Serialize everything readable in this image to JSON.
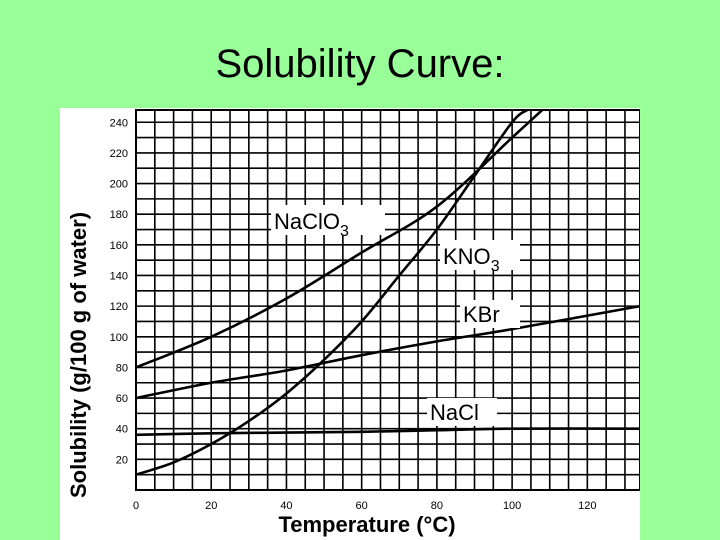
{
  "slide": {
    "title": "Solubility Curve:"
  },
  "chart_data": {
    "type": "line",
    "xlabel": "Temperature (°C)",
    "ylabel": "Solubility (g/100 g of water)",
    "xlim": [
      0,
      134
    ],
    "ylim": [
      0,
      248
    ],
    "grid": true,
    "xticks": [
      0,
      20,
      40,
      60,
      80,
      100,
      120
    ],
    "yticks": [
      20,
      40,
      60,
      80,
      100,
      120,
      140,
      160,
      180,
      200,
      220,
      240
    ],
    "series": [
      {
        "name": "NaClO3",
        "label_main": "NaClO",
        "label_sub": "3",
        "x": [
          0,
          20,
          40,
          60,
          80,
          100,
          108
        ],
        "y": [
          80,
          100,
          125,
          155,
          185,
          230,
          248
        ]
      },
      {
        "name": "KNO3",
        "label_main": "KNO",
        "label_sub": "3",
        "x": [
          0,
          10,
          20,
          30,
          40,
          50,
          60,
          70,
          80,
          90,
          100,
          104
        ],
        "y": [
          10,
          18,
          30,
          45,
          63,
          85,
          110,
          140,
          170,
          205,
          240,
          248
        ]
      },
      {
        "name": "KBr",
        "label_main": "KBr",
        "label_sub": "",
        "x": [
          0,
          20,
          40,
          60,
          80,
          100,
          134
        ],
        "y": [
          60,
          70,
          78,
          88,
          97,
          105,
          120
        ]
      },
      {
        "name": "NaCl",
        "label_main": "NaCl",
        "label_sub": "",
        "x": [
          0,
          20,
          40,
          60,
          80,
          100,
          134
        ],
        "y": [
          36,
          37,
          37.5,
          38,
          39,
          40,
          40
        ]
      }
    ]
  }
}
